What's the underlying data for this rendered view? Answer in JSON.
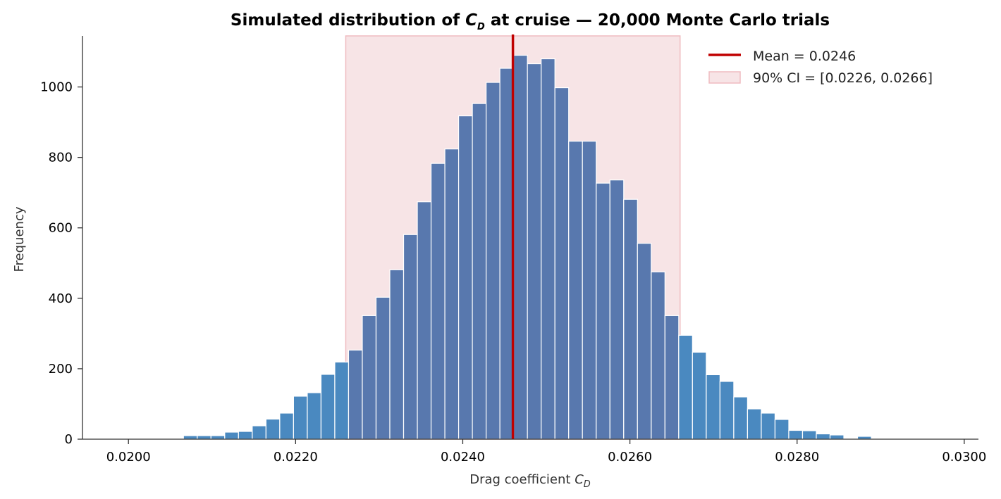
{
  "chart_data": {
    "type": "bar",
    "title_prefix": "Simulated distribution of ",
    "title_symbol": "C",
    "title_subscript": "D",
    "title_suffix": " at cruise — 20,000 Monte Carlo trials",
    "xlabel_prefix": "Drag coefficient ",
    "xlabel_symbol": "C",
    "xlabel_subscript": "D",
    "ylabel": "Frequency",
    "xlim": [
      0.01945,
      0.03017
    ],
    "ylim": [
      0,
      1145
    ],
    "x_ticks": [
      "0.0200",
      "0.0220",
      "0.0240",
      "0.0260",
      "0.0280",
      "0.0300"
    ],
    "x_tick_values": [
      0.02,
      0.022,
      0.024,
      0.026,
      0.028,
      0.03
    ],
    "y_ticks": [
      "0",
      "200",
      "400",
      "600",
      "800",
      "1000"
    ],
    "y_tick_values": [
      0,
      200,
      400,
      600,
      800,
      1000
    ],
    "bin_start": 0.02,
    "bin_width": 0.0001646,
    "values": [
      2,
      2,
      2,
      0,
      10,
      10,
      10,
      20,
      22,
      38,
      57,
      74,
      122,
      132,
      184,
      219,
      253,
      351,
      403,
      481,
      581,
      674,
      783,
      824,
      918,
      953,
      1013,
      1053,
      1090,
      1066,
      1080,
      998,
      846,
      846,
      727,
      736,
      681,
      556,
      475,
      351,
      295,
      247,
      183,
      164,
      120,
      86,
      74,
      56,
      25,
      24,
      15,
      12,
      0,
      8,
      0,
      0,
      0,
      0,
      0,
      0,
      0
    ],
    "mean": 0.0246,
    "ci": [
      0.0226,
      0.0266
    ],
    "legend": [
      {
        "label": "Mean = 0.0246",
        "type": "line"
      },
      {
        "label": "90% CI = [0.0226, 0.0266]",
        "type": "patch"
      }
    ],
    "legend_position": "top-right",
    "grid": false
  },
  "colors": {
    "bar_outside": "#4a89c0",
    "bar_inside": "#5878ae",
    "bar_edge": "#ffffff",
    "mean_line": "#c00000",
    "ci_fill": "#f7e4e6",
    "ci_edge": "#efbcc0",
    "axis": "#333333"
  }
}
